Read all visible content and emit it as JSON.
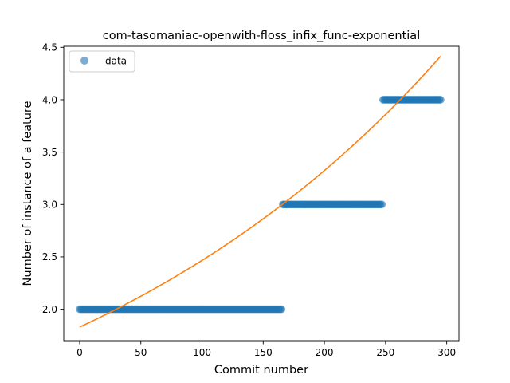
{
  "chart_data": {
    "type": "scatter",
    "title": "com-tasomaniac-openwith-floss_infix_func-exponential",
    "xlabel": "Commit number",
    "ylabel": "Number of instance of a feature",
    "xlim": [
      -13,
      310
    ],
    "ylim": [
      1.7,
      4.51
    ],
    "xticks": [
      0,
      50,
      100,
      150,
      200,
      250,
      300
    ],
    "xtick_labels": [
      "0",
      "50",
      "100",
      "150",
      "200",
      "250",
      "300"
    ],
    "yticks": [
      2.0,
      2.5,
      3.0,
      3.5,
      4.0,
      4.5
    ],
    "ytick_labels": [
      "2.0",
      "2.5",
      "3.0",
      "3.5",
      "4.0",
      "4.5"
    ],
    "grid": false,
    "legend": {
      "placement": "upper-left",
      "entries": [
        "data"
      ]
    },
    "series": [
      {
        "name": "data",
        "kind": "scatter",
        "color": "#1f77b4",
        "alpha": 0.6,
        "segments": [
          {
            "x_start": 0,
            "x_end": 165,
            "y": 2.0
          },
          {
            "x_start": 166,
            "x_end": 247,
            "y": 3.0
          },
          {
            "x_start": 248,
            "x_end": 295,
            "y": 4.0
          }
        ]
      },
      {
        "kind": "line",
        "color": "#ff7f0e",
        "model": "exponential",
        "a": 1.83,
        "b": 0.002985,
        "x_range": [
          0,
          295
        ]
      }
    ]
  }
}
